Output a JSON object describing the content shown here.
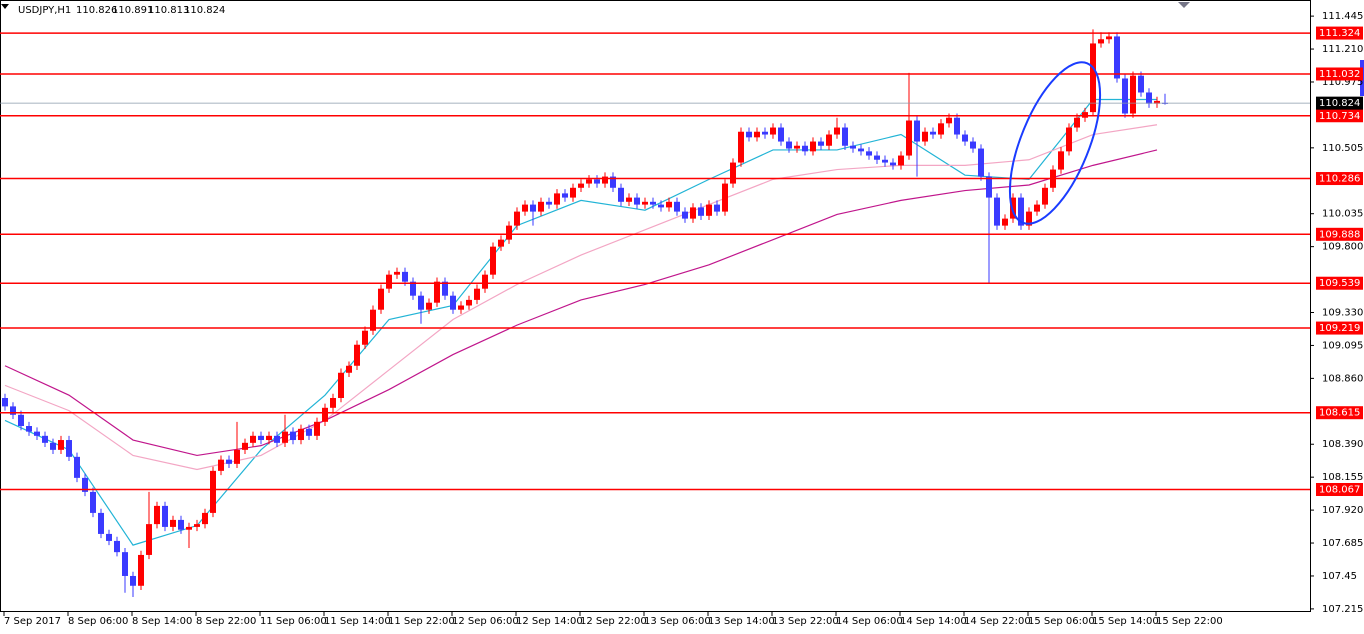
{
  "chart_data": {
    "type": "candlestick",
    "title": "USDJPY,H1",
    "categories": [
      "7 Sep 2017",
      "8 Sep 06:00",
      "8 Sep 14:00",
      "8 Sep 22:00",
      "11 Sep 06:00",
      "11 Sep 14:00",
      "11 Sep 22:00",
      "12 Sep 06:00",
      "12 Sep 14:00",
      "12 Sep 22:00",
      "13 Sep 06:00",
      "13 Sep 14:00",
      "13 Sep 22:00",
      "14 Sep 06:00",
      "14 Sep 14:00",
      "14 Sep 22:00",
      "15 Sep 06:00",
      "15 Sep 14:00",
      "15 Sep 22:00"
    ],
    "candles": [
      [
        108.72,
        108.75,
        108.63,
        108.66
      ],
      [
        108.66,
        108.69,
        108.57,
        108.6
      ],
      [
        108.6,
        108.63,
        108.49,
        108.52
      ],
      [
        108.52,
        108.55,
        108.45,
        108.48
      ],
      [
        108.48,
        108.51,
        108.42,
        108.45
      ],
      [
        108.45,
        108.48,
        108.37,
        108.4
      ],
      [
        108.4,
        108.43,
        108.32,
        108.35
      ],
      [
        108.35,
        108.45,
        108.32,
        108.42
      ],
      [
        108.42,
        108.45,
        108.27,
        108.3
      ],
      [
        108.3,
        108.33,
        108.12,
        108.15
      ],
      [
        108.15,
        108.18,
        108.02,
        108.05
      ],
      [
        108.05,
        108.08,
        107.87,
        107.9
      ],
      [
        107.9,
        107.93,
        107.72,
        107.75
      ],
      [
        107.75,
        107.78,
        107.67,
        107.7
      ],
      [
        107.7,
        107.73,
        107.59,
        107.62
      ],
      [
        107.62,
        107.65,
        107.33,
        107.45
      ],
      [
        107.45,
        107.48,
        107.3,
        107.38
      ],
      [
        107.38,
        107.63,
        107.35,
        107.6
      ],
      [
        107.6,
        108.05,
        107.57,
        107.82
      ],
      [
        107.82,
        107.98,
        107.79,
        107.95
      ],
      [
        107.95,
        107.98,
        107.77,
        107.8
      ],
      [
        107.8,
        107.88,
        107.77,
        107.85
      ],
      [
        107.85,
        107.88,
        107.75,
        107.78
      ],
      [
        107.78,
        107.83,
        107.65,
        107.8
      ],
      [
        107.8,
        107.85,
        107.77,
        107.82
      ],
      [
        107.82,
        107.93,
        107.79,
        107.9
      ],
      [
        107.9,
        108.23,
        107.87,
        108.2
      ],
      [
        108.2,
        108.31,
        108.17,
        108.28
      ],
      [
        108.28,
        108.31,
        108.22,
        108.25
      ],
      [
        108.25,
        108.55,
        108.22,
        108.35
      ],
      [
        108.35,
        108.43,
        108.32,
        108.4
      ],
      [
        108.4,
        108.48,
        108.37,
        108.45
      ],
      [
        108.45,
        108.48,
        108.39,
        108.42
      ],
      [
        108.42,
        108.48,
        108.39,
        108.45
      ],
      [
        108.45,
        108.48,
        108.37,
        108.4
      ],
      [
        108.4,
        108.6,
        108.37,
        108.48
      ],
      [
        108.48,
        108.51,
        108.39,
        108.42
      ],
      [
        108.42,
        108.53,
        108.39,
        108.5
      ],
      [
        108.5,
        108.53,
        108.42,
        108.45
      ],
      [
        108.45,
        108.58,
        108.42,
        108.55
      ],
      [
        108.55,
        108.68,
        108.52,
        108.65
      ],
      [
        108.65,
        108.75,
        108.62,
        108.72
      ],
      [
        108.72,
        108.93,
        108.69,
        108.9
      ],
      [
        108.9,
        108.98,
        108.87,
        108.95
      ],
      [
        108.95,
        109.13,
        108.92,
        109.1
      ],
      [
        109.1,
        109.23,
        109.07,
        109.2
      ],
      [
        109.2,
        109.38,
        109.17,
        109.35
      ],
      [
        109.35,
        109.53,
        109.32,
        109.5
      ],
      [
        109.5,
        109.63,
        109.47,
        109.6
      ],
      [
        109.6,
        109.65,
        109.57,
        109.62
      ],
      [
        109.62,
        109.65,
        109.52,
        109.55
      ],
      [
        109.55,
        109.58,
        109.42,
        109.45
      ],
      [
        109.45,
        109.48,
        109.25,
        109.35
      ],
      [
        109.35,
        109.43,
        109.32,
        109.4
      ],
      [
        109.4,
        109.58,
        109.37,
        109.55
      ],
      [
        109.55,
        109.58,
        109.42,
        109.45
      ],
      [
        109.45,
        109.48,
        109.32,
        109.35
      ],
      [
        109.35,
        109.41,
        109.32,
        109.38
      ],
      [
        109.38,
        109.45,
        109.35,
        109.42
      ],
      [
        109.42,
        109.53,
        109.39,
        109.5
      ],
      [
        109.5,
        109.63,
        109.47,
        109.6
      ],
      [
        109.6,
        109.83,
        109.57,
        109.8
      ],
      [
        109.8,
        109.88,
        109.77,
        109.85
      ],
      [
        109.85,
        109.98,
        109.82,
        109.95
      ],
      [
        109.95,
        110.08,
        109.92,
        110.05
      ],
      [
        110.05,
        110.13,
        110.02,
        110.1
      ],
      [
        110.1,
        110.13,
        109.95,
        110.05
      ],
      [
        110.05,
        110.15,
        110.02,
        110.12
      ],
      [
        110.12,
        110.15,
        110.07,
        110.1
      ],
      [
        110.1,
        110.21,
        110.07,
        110.18
      ],
      [
        110.18,
        110.21,
        110.12,
        110.15
      ],
      [
        110.15,
        110.25,
        110.12,
        110.22
      ],
      [
        110.22,
        110.28,
        110.19,
        110.25
      ],
      [
        110.25,
        110.31,
        110.22,
        110.28
      ],
      [
        110.28,
        110.31,
        110.22,
        110.25
      ],
      [
        110.25,
        110.33,
        110.22,
        110.3
      ],
      [
        110.3,
        110.33,
        110.19,
        110.22
      ],
      [
        110.22,
        110.25,
        110.09,
        110.12
      ],
      [
        110.12,
        110.18,
        110.09,
        110.15
      ],
      [
        110.15,
        110.18,
        110.07,
        110.1
      ],
      [
        110.1,
        110.15,
        110.07,
        110.12
      ],
      [
        110.12,
        110.15,
        110.07,
        110.1
      ],
      [
        110.1,
        110.13,
        110.05,
        110.08
      ],
      [
        110.08,
        110.15,
        110.05,
        110.12
      ],
      [
        110.12,
        110.15,
        110.02,
        110.05
      ],
      [
        110.05,
        110.08,
        109.97,
        110.0
      ],
      [
        110.0,
        110.11,
        109.97,
        110.08
      ],
      [
        110.08,
        110.11,
        109.99,
        110.02
      ],
      [
        110.02,
        110.13,
        109.99,
        110.1
      ],
      [
        110.1,
        110.13,
        110.02,
        110.05
      ],
      [
        110.05,
        110.28,
        110.02,
        110.25
      ],
      [
        110.25,
        110.43,
        110.22,
        110.4
      ],
      [
        110.4,
        110.65,
        110.37,
        110.62
      ],
      [
        110.62,
        110.65,
        110.55,
        110.58
      ],
      [
        110.58,
        110.65,
        110.55,
        110.62
      ],
      [
        110.62,
        110.65,
        110.57,
        110.6
      ],
      [
        110.6,
        110.68,
        110.57,
        110.65
      ],
      [
        110.65,
        110.68,
        110.52,
        110.55
      ],
      [
        110.55,
        110.58,
        110.47,
        110.5
      ],
      [
        110.5,
        110.55,
        110.47,
        110.52
      ],
      [
        110.52,
        110.55,
        110.45,
        110.48
      ],
      [
        110.48,
        110.58,
        110.45,
        110.55
      ],
      [
        110.55,
        110.58,
        110.49,
        110.52
      ],
      [
        110.52,
        110.63,
        110.49,
        110.6
      ],
      [
        110.6,
        110.72,
        110.57,
        110.65
      ],
      [
        110.65,
        110.68,
        110.49,
        110.52
      ],
      [
        110.52,
        110.55,
        110.47,
        110.5
      ],
      [
        110.5,
        110.53,
        110.45,
        110.48
      ],
      [
        110.48,
        110.51,
        110.42,
        110.45
      ],
      [
        110.45,
        110.48,
        110.39,
        110.42
      ],
      [
        110.42,
        110.45,
        110.37,
        110.4
      ],
      [
        110.4,
        110.43,
        110.35,
        110.38
      ],
      [
        110.38,
        110.48,
        110.35,
        110.45
      ],
      [
        110.45,
        111.04,
        110.42,
        110.7
      ],
      [
        110.7,
        110.73,
        110.3,
        110.55
      ],
      [
        110.55,
        110.65,
        110.52,
        110.62
      ],
      [
        110.62,
        110.65,
        110.57,
        110.6
      ],
      [
        110.6,
        110.71,
        110.57,
        110.68
      ],
      [
        110.68,
        110.75,
        110.65,
        110.72
      ],
      [
        110.72,
        110.75,
        110.57,
        110.6
      ],
      [
        110.6,
        110.63,
        110.52,
        110.55
      ],
      [
        110.55,
        110.58,
        110.47,
        110.5
      ],
      [
        110.5,
        110.53,
        110.27,
        110.3
      ],
      [
        110.3,
        110.33,
        109.54,
        110.15
      ],
      [
        110.15,
        110.18,
        109.92,
        109.95
      ],
      [
        109.95,
        110.03,
        109.92,
        110.0
      ],
      [
        110.0,
        110.18,
        109.97,
        110.15
      ],
      [
        110.15,
        110.18,
        109.92,
        109.95
      ],
      [
        109.95,
        110.08,
        109.92,
        110.05
      ],
      [
        110.05,
        110.13,
        110.02,
        110.1
      ],
      [
        110.1,
        110.25,
        110.07,
        110.22
      ],
      [
        110.22,
        110.38,
        110.19,
        110.35
      ],
      [
        110.35,
        110.51,
        110.32,
        110.48
      ],
      [
        110.48,
        110.68,
        110.45,
        110.65
      ],
      [
        110.65,
        110.75,
        110.62,
        110.72
      ],
      [
        110.72,
        110.79,
        110.69,
        110.76
      ],
      [
        110.76,
        111.35,
        110.73,
        111.25
      ],
      [
        111.25,
        111.33,
        111.22,
        111.28
      ],
      [
        111.28,
        111.33,
        111.25,
        111.3
      ],
      [
        111.3,
        111.33,
        110.97,
        111.0
      ],
      [
        111.0,
        111.03,
        110.72,
        110.75
      ],
      [
        110.75,
        111.05,
        110.72,
        111.02
      ],
      [
        111.02,
        111.05,
        110.87,
        110.9
      ],
      [
        110.9,
        110.93,
        110.79,
        110.82
      ],
      [
        110.82,
        110.87,
        110.79,
        110.84
      ],
      [
        110.826,
        110.891,
        110.813,
        110.824
      ]
    ],
    "up_color": "#ff0000",
    "down_color": "#3a3aff",
    "ylim": [
      107.2,
      111.56
    ],
    "yticks": [
      111.445,
      {
        "value": 111.21,
        "label": "111.210"
      },
      110.975,
      110.505,
      110.035,
      {
        "value": 109.8,
        "label": "109.800"
      },
      {
        "value": 109.33,
        "label": "109.330"
      },
      109.095,
      {
        "value": 108.86,
        "label": "108.860"
      },
      {
        "value": 108.39,
        "label": "108.390"
      },
      108.155,
      {
        "value": 107.92,
        "label": "107.920"
      },
      107.685,
      107.45,
      107.215
    ],
    "levels": [
      111.324,
      111.032,
      110.734,
      110.286,
      109.888,
      109.539,
      109.219,
      108.615,
      108.067
    ],
    "level_color": "#ff0000",
    "series": [
      {
        "color": "#22b4d6",
        "values": [
          108.56,
          108.35,
          107.67,
          107.81,
          108.35,
          108.74,
          109.28,
          109.38,
          109.95,
          110.13,
          110.06,
          110.28,
          110.49,
          110.49,
          110.6,
          110.31,
          110.28,
          110.85,
          110.85
        ]
      },
      {
        "color": "#f3a6c4",
        "values": [
          108.81,
          108.63,
          108.31,
          108.21,
          108.31,
          108.56,
          108.92,
          109.28,
          109.53,
          109.74,
          109.92,
          110.1,
          110.28,
          110.35,
          110.38,
          110.38,
          110.42,
          110.6,
          110.67
        ]
      },
      {
        "color": "#c0168c",
        "values": [
          108.95,
          108.74,
          108.42,
          108.31,
          108.38,
          108.56,
          108.78,
          109.03,
          109.24,
          109.42,
          109.53,
          109.67,
          109.85,
          110.03,
          110.13,
          110.2,
          110.24,
          110.38,
          110.49
        ]
      }
    ]
  }
}
